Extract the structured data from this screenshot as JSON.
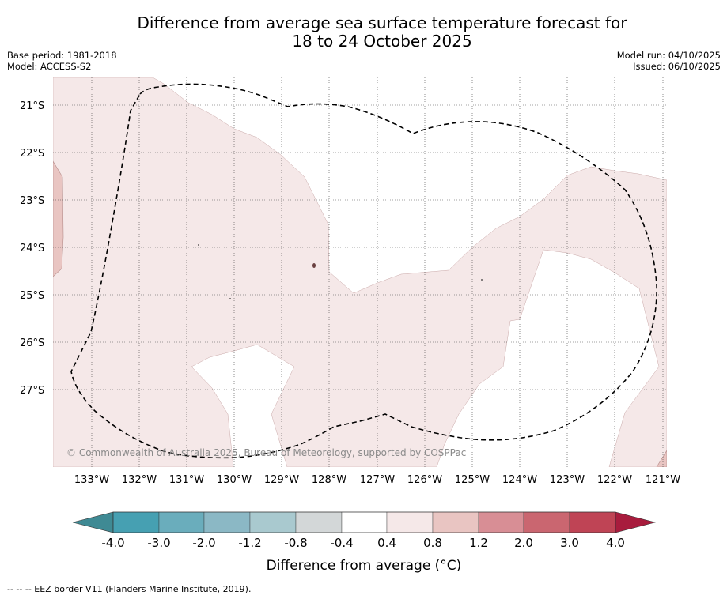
{
  "title": {
    "line1": "Difference from average sea surface temperature forecast for",
    "line2": "18 to 24 October 2025"
  },
  "meta": {
    "base_period": "Base period: 1981-2018",
    "model": "Model: ACCESS-S2",
    "model_run": "Model run: 04/10/2025",
    "issued": "Issued: 06/10/2025"
  },
  "map": {
    "lat_labels": [
      "21°S",
      "22°S",
      "23°S",
      "24°S",
      "25°S",
      "26°S",
      "27°S"
    ],
    "lon_labels": [
      "133°W",
      "132°W",
      "131°W",
      "130°W",
      "129°W",
      "128°W",
      "127°W",
      "126°W",
      "125°W",
      "124°W",
      "123°W",
      "122°W",
      "121°W"
    ],
    "copyright": "© Commonwealth of Australia 2025, Bureau of Meteorology, supported by COSPPac"
  },
  "colorbar": {
    "ticks": [
      "-4.0",
      "-3.0",
      "-2.0",
      "-1.2",
      "-0.8",
      "-0.4",
      "0.4",
      "0.8",
      "1.2",
      "2.0",
      "3.0",
      "4.0"
    ],
    "colors": {
      "below_min": "#3f8a94",
      "bins": [
        "#46a0b2",
        "#6aadbc",
        "#8bb8c5",
        "#a9c9cf",
        "#d3d7d8",
        "#ffffff",
        "#f5e8e8",
        "#e9c5c2",
        "#d88e95",
        "#ca6670",
        "#bf4455"
      ],
      "above_max": "#a81c3d"
    },
    "label": "Difference from average (°C)"
  },
  "footer": {
    "eez_note": "--  --  -- EEZ border V11 (Flanders Marine Institute, 2019)."
  }
}
